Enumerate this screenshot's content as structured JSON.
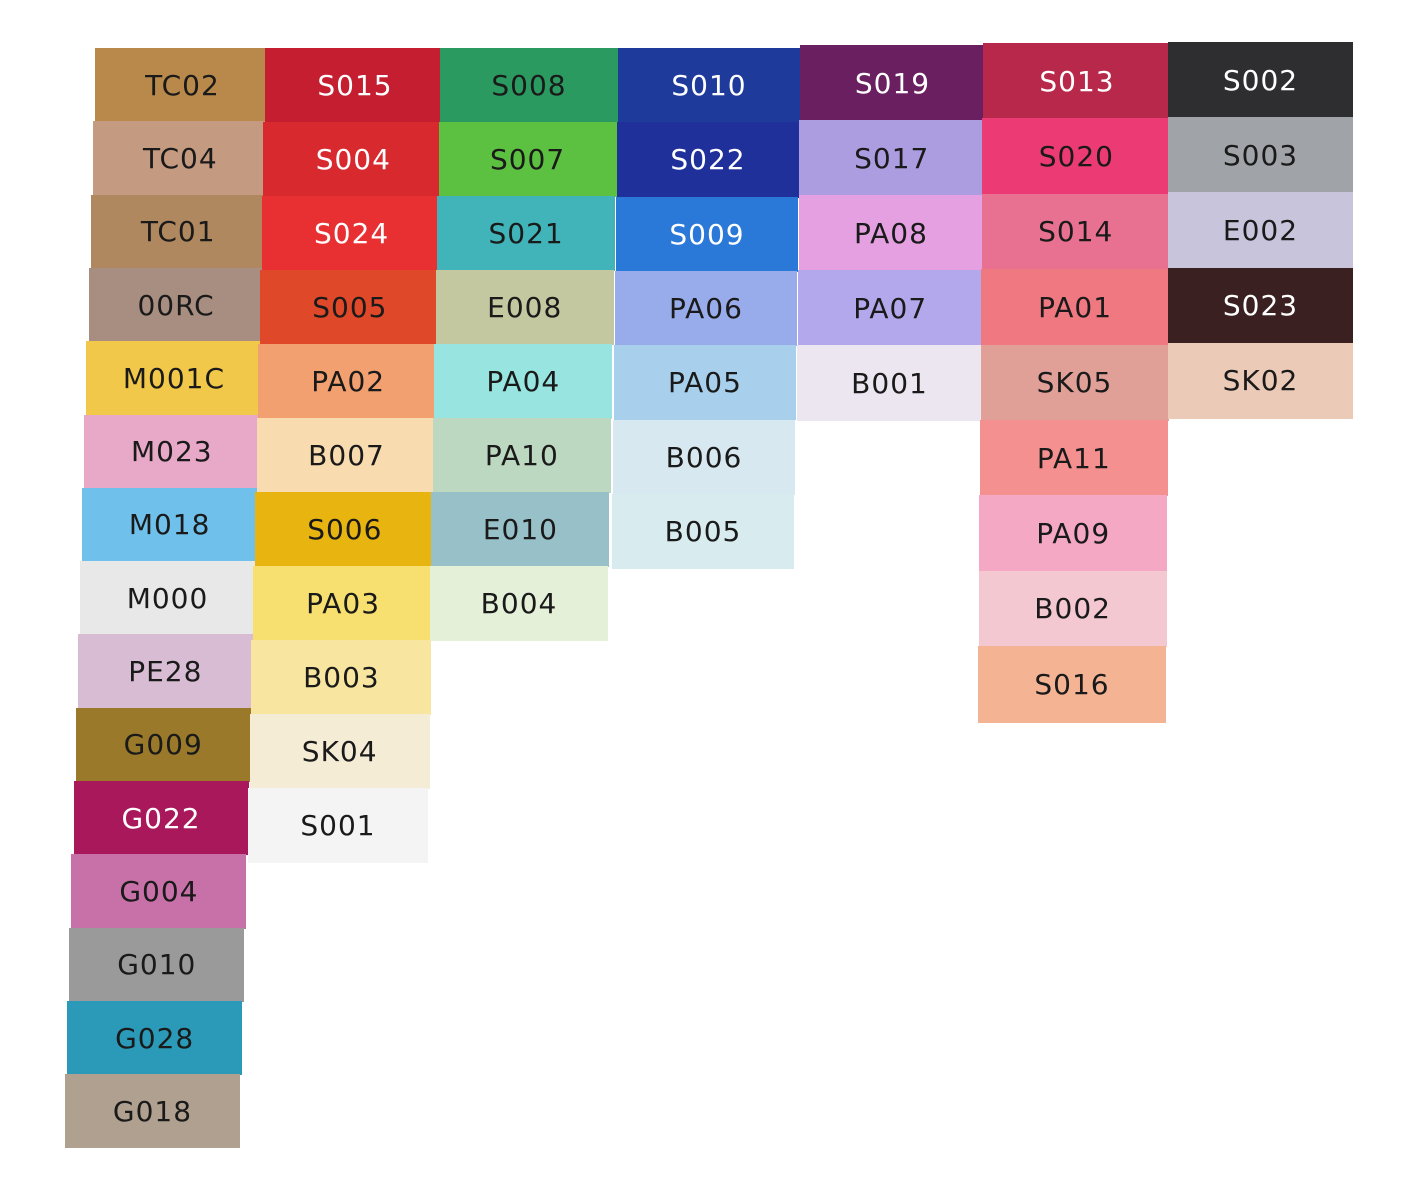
{
  "columns": [
    {
      "swatches": [
        {
          "label": "TC02",
          "color": "#b8894a"
        },
        {
          "label": "TC04",
          "color": "#c49a80"
        },
        {
          "label": "TC01",
          "color": "#b08860"
        },
        {
          "label": "00RC",
          "color": "#a88e80"
        },
        {
          "label": "M001C",
          "color": "#f2c84a"
        },
        {
          "label": "M023",
          "color": "#e8a8c8"
        },
        {
          "label": "M018",
          "color": "#6fc0ea"
        },
        {
          "label": "M000",
          "color": "#e8e8e8"
        },
        {
          "label": "PE28",
          "color": "#d8bcd4"
        },
        {
          "label": "G009",
          "color": "#9a7a2a"
        },
        {
          "label": "G022",
          "color": "#a8185a"
        },
        {
          "label": "G004",
          "color": "#c870a8"
        },
        {
          "label": "G010",
          "color": "#9a9a9a"
        },
        {
          "label": "G028",
          "color": "#2a9ab8"
        },
        {
          "label": "G018",
          "color": "#b0a090"
        }
      ]
    },
    {
      "swatches": [
        {
          "label": "S015",
          "color": "#c41e30"
        },
        {
          "label": "S004",
          "color": "#d82a2e"
        },
        {
          "label": "S024",
          "color": "#e83032"
        },
        {
          "label": "S005",
          "color": "#e0482a"
        },
        {
          "label": "PA02",
          "color": "#f2a070"
        },
        {
          "label": "B007",
          "color": "#f8dcb0"
        },
        {
          "label": "S006",
          "color": "#e8b410"
        },
        {
          "label": "PA03",
          "color": "#f8e070"
        },
        {
          "label": "B003",
          "color": "#f8e6a0"
        },
        {
          "label": "SK04",
          "color": "#f4ecd4"
        },
        {
          "label": "S001",
          "color": "#f4f4f4"
        }
      ]
    },
    {
      "swatches": [
        {
          "label": "S008",
          "color": "#2a9a60"
        },
        {
          "label": "S007",
          "color": "#5cc040"
        },
        {
          "label": "S021",
          "color": "#40b4b8"
        },
        {
          "label": "E008",
          "color": "#c4c8a0"
        },
        {
          "label": "PA04",
          "color": "#98e4e0"
        },
        {
          "label": "PA10",
          "color": "#bcd8c0"
        },
        {
          "label": "E010",
          "color": "#98c0c8"
        },
        {
          "label": "B004",
          "color": "#e4f0d8"
        }
      ]
    },
    {
      "swatches": [
        {
          "label": "S010",
          "color": "#1e3a9a"
        },
        {
          "label": "S022",
          "color": "#20309a"
        },
        {
          "label": "S009",
          "color": "#2a78d8"
        },
        {
          "label": "PA06",
          "color": "#98acec"
        },
        {
          "label": "PA05",
          "color": "#a8d0ec"
        },
        {
          "label": "B006",
          "color": "#d8e8f0"
        },
        {
          "label": "B005",
          "color": "#d8ecf0"
        }
      ]
    },
    {
      "swatches": [
        {
          "label": "S019",
          "color": "#6a2060"
        },
        {
          "label": "S017",
          "color": "#ac9ce0"
        },
        {
          "label": "PA08",
          "color": "#e4a0e0"
        },
        {
          "label": "PA07",
          "color": "#b4a8ec"
        },
        {
          "label": "B001",
          "color": "#ece6f0"
        }
      ]
    },
    {
      "swatches": [
        {
          "label": "S013",
          "color": "#b8284a"
        },
        {
          "label": "S020",
          "color": "#ec3a74"
        },
        {
          "label": "S014",
          "color": "#e87090"
        },
        {
          "label": "PA01",
          "color": "#f07880"
        },
        {
          "label": "SK05",
          "color": "#e0a098"
        },
        {
          "label": "PA11",
          "color": "#f49090"
        },
        {
          "label": "PA09",
          "color": "#f4a8c4"
        },
        {
          "label": "B002",
          "color": "#f4c8d0"
        },
        {
          "label": "S016",
          "color": "#f4b494"
        }
      ]
    },
    {
      "swatches": [
        {
          "label": "S002",
          "color": "#2e2e30"
        },
        {
          "label": "S003",
          "color": "#a0a4a8"
        },
        {
          "label": "E002",
          "color": "#c8c4dc"
        },
        {
          "label": "S023",
          "color": "#3a2020"
        },
        {
          "label": "SK02",
          "color": "#eccab8"
        }
      ]
    }
  ]
}
